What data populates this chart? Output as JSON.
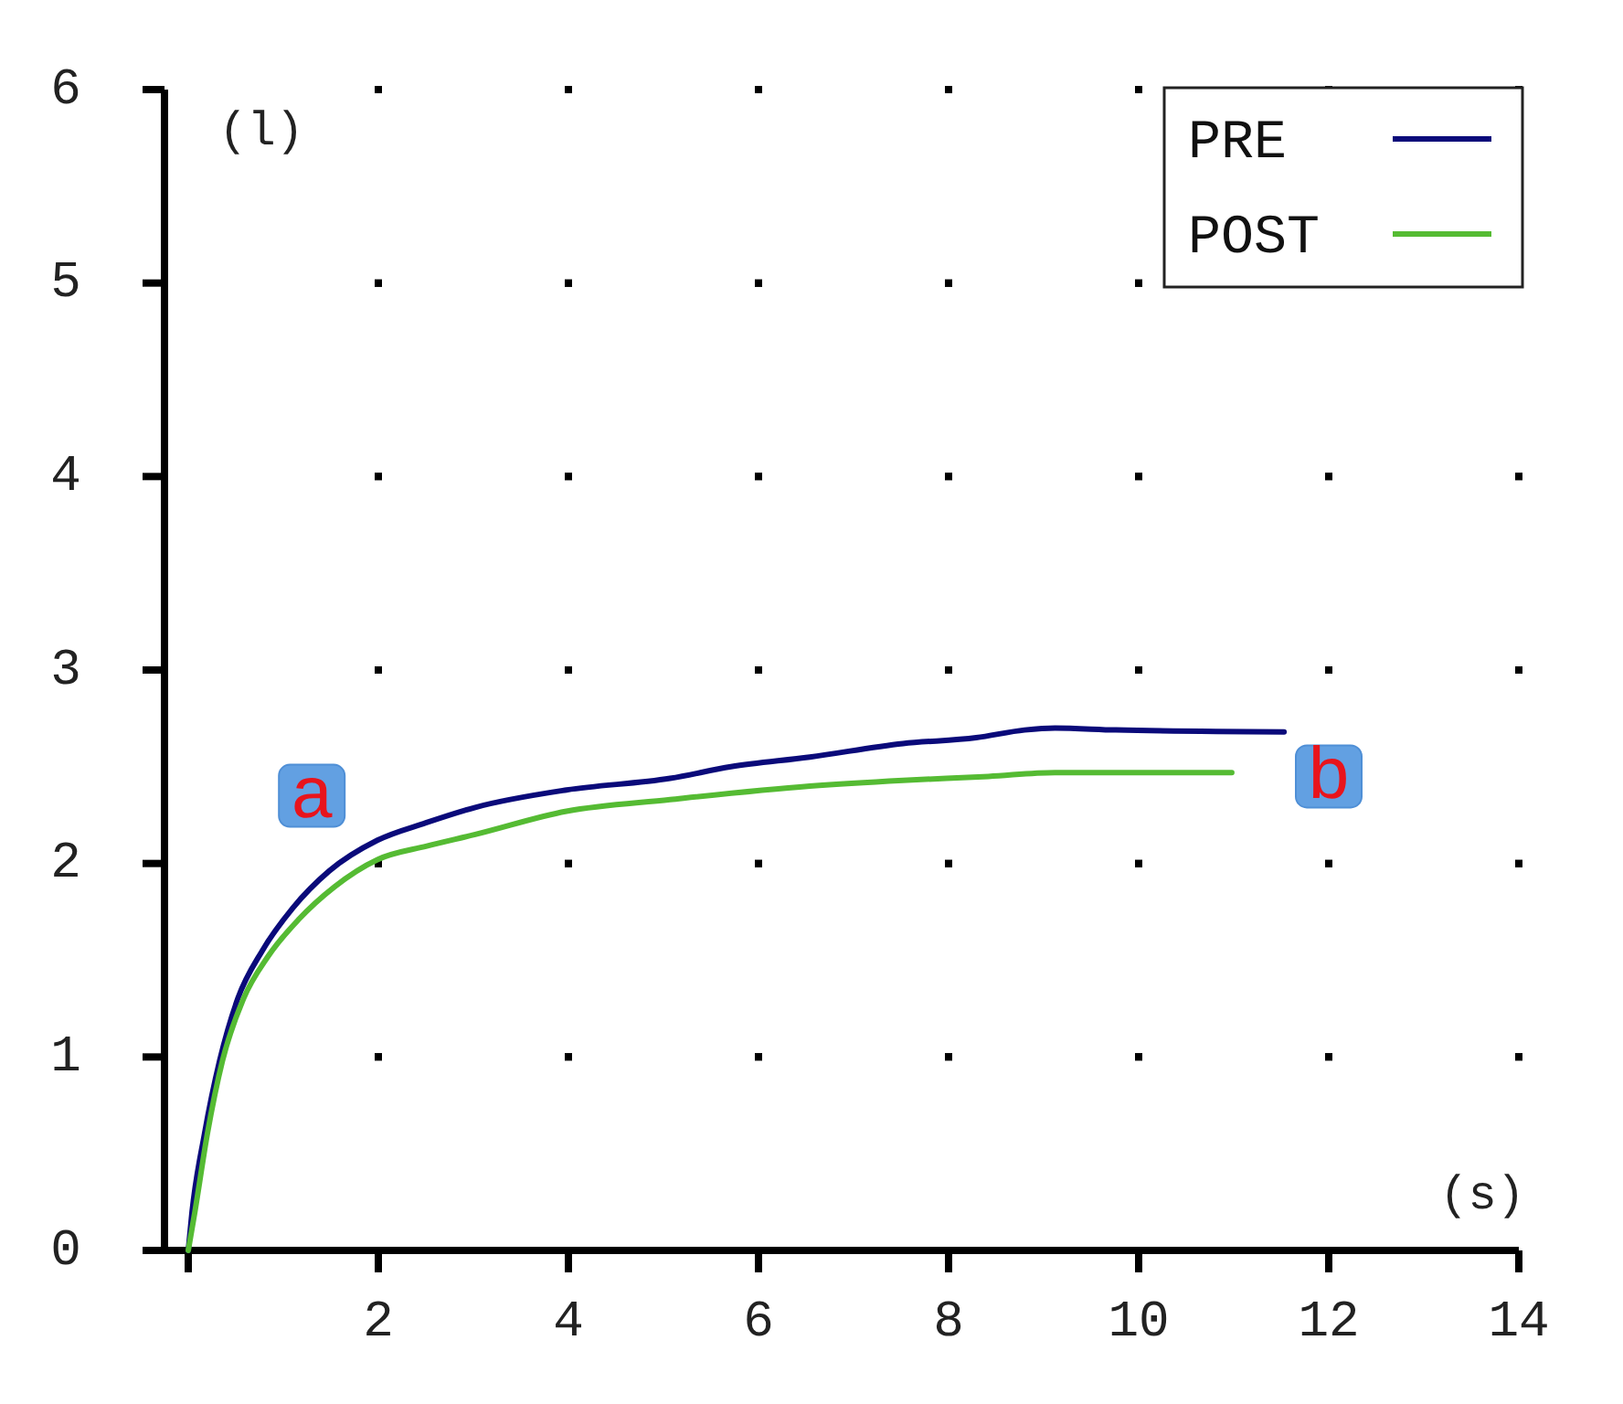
{
  "chart_data": {
    "type": "line",
    "xlabel": "(s)",
    "ylabel": "(l)",
    "xlim": [
      -0.25,
      14
    ],
    "ylim": [
      0,
      6
    ],
    "xticks": [
      {
        "value": 0,
        "label": null
      },
      2,
      4,
      6,
      8,
      10,
      12,
      14
    ],
    "yticks": [
      0,
      1,
      2,
      3,
      4,
      5,
      6
    ],
    "grid": true,
    "legend": "top right",
    "line_style": "solid",
    "annotations": [
      {
        "text": "a",
        "x": 1.3,
        "y": 2.35
      },
      {
        "text": "b",
        "x": 12,
        "y": 2.45
      }
    ],
    "series": [
      {
        "name": "PRE",
        "color": "#0a0a7a",
        "x": [
          0,
          0.04,
          0.17,
          0.33,
          0.52,
          0.78,
          1.1,
          1.48,
          1.99,
          2.5,
          3.02,
          3.98,
          5.07,
          5.71,
          6.54,
          7.52,
          8.29,
          8.8,
          9.12,
          9.76,
          11.53
        ],
        "values": [
          0,
          0.2,
          0.6,
          0.98,
          1.3,
          1.55,
          1.77,
          1.96,
          2.12,
          2.21,
          2.29,
          2.38,
          2.44,
          2.5,
          2.55,
          2.62,
          2.65,
          2.69,
          2.7,
          2.69,
          2.68
        ]
      },
      {
        "name": "POST",
        "color": "#55bb33",
        "x": [
          0,
          0.07,
          0.2,
          0.36,
          0.58,
          0.84,
          1.16,
          1.54,
          1.99,
          2.51,
          3.02,
          3.98,
          5.07,
          6.54,
          7.52,
          8.42,
          9.12,
          10.98
        ],
        "values": [
          0,
          0.2,
          0.6,
          0.98,
          1.3,
          1.52,
          1.71,
          1.88,
          2.02,
          2.09,
          2.15,
          2.27,
          2.33,
          2.4,
          2.43,
          2.45,
          2.47,
          2.47
        ]
      }
    ]
  }
}
